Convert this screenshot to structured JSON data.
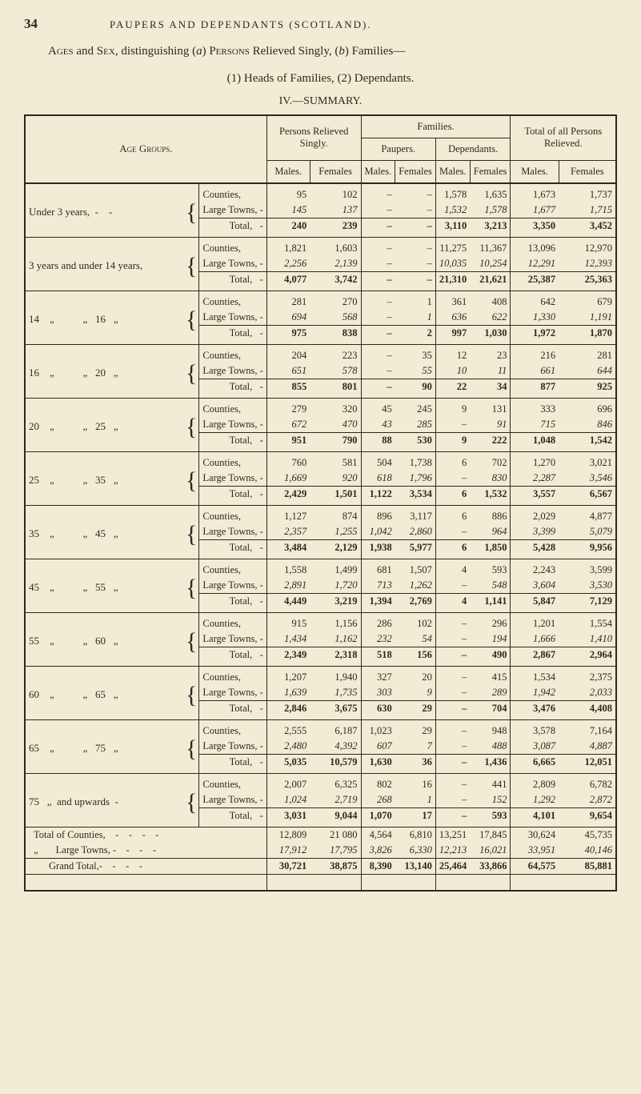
{
  "page_number": "34",
  "running_head": "PAUPERS AND DEPENDANTS (SCOTLAND).",
  "title_html": "Ages and Sex, distinguishing (a) Persons Relieved Singly, (b) Families—",
  "title_line2": "(1) Heads of Families, (2) Dependants.",
  "subtitle": "IV.—SUMMARY.",
  "header": {
    "age_groups": "Age Groups.",
    "persons_singly": "Persons Relieved Singly.",
    "families": "Families.",
    "paupers": "Paupers.",
    "dependants": "Dependants.",
    "total_all": "Total of all Persons Relieved.",
    "males": "Males.",
    "females": "Females"
  },
  "row_labels": {
    "counties": "Counties,",
    "large_towns": "Large Towns, -",
    "total": "Total,",
    "grand_total": "Grand Total,-"
  },
  "age_labels": [
    "Under 3 years,  -    -",
    "3 years and under 14 years,",
    "14    „           „   16   „",
    "16    „           „   20   „",
    "20    „           „   25   „",
    "25    „           „   35   „",
    "35    „           „   45   „",
    "45    „           „   55   „",
    "55    „           „   60   „",
    "60    „           „   65   „",
    "65    „           „   75   „",
    "75   „  and upwards  -"
  ],
  "total_counties_label": "Total of Counties,    -    -    -    -",
  "total_towns_label": "„       Large Towns, -    -    -    -",
  "groups": [
    {
      "rows": [
        {
          "t": "c",
          "v": [
            "95",
            "102",
            "–",
            "–",
            "1,578",
            "1,635",
            "1,673",
            "1,737"
          ]
        },
        {
          "t": "l",
          "v": [
            "145",
            "137",
            "–",
            "–",
            "1,532",
            "1,578",
            "1,677",
            "1,715"
          ]
        },
        {
          "t": "t",
          "v": [
            "240",
            "239",
            "–",
            "–",
            "3,110",
            "3,213",
            "3,350",
            "3,452"
          ]
        }
      ]
    },
    {
      "rows": [
        {
          "t": "c",
          "v": [
            "1,821",
            "1,603",
            "–",
            "–",
            "11,275",
            "11,367",
            "13,096",
            "12,970"
          ]
        },
        {
          "t": "l",
          "v": [
            "2,256",
            "2,139",
            "–",
            "–",
            "10,035",
            "10,254",
            "12,291",
            "12,393"
          ]
        },
        {
          "t": "t",
          "v": [
            "4,077",
            "3,742",
            "–",
            "–",
            "21,310",
            "21,621",
            "25,387",
            "25,363"
          ]
        }
      ]
    },
    {
      "rows": [
        {
          "t": "c",
          "v": [
            "281",
            "270",
            "–",
            "1",
            "361",
            "408",
            "642",
            "679"
          ]
        },
        {
          "t": "l",
          "v": [
            "694",
            "568",
            "–",
            "1",
            "636",
            "622",
            "1,330",
            "1,191"
          ]
        },
        {
          "t": "t",
          "v": [
            "975",
            "838",
            "–",
            "2",
            "997",
            "1,030",
            "1,972",
            "1,870"
          ]
        }
      ]
    },
    {
      "rows": [
        {
          "t": "c",
          "v": [
            "204",
            "223",
            "–",
            "35",
            "12",
            "23",
            "216",
            "281"
          ]
        },
        {
          "t": "l",
          "v": [
            "651",
            "578",
            "–",
            "55",
            "10",
            "11",
            "661",
            "644"
          ]
        },
        {
          "t": "t",
          "v": [
            "855",
            "801",
            "–",
            "90",
            "22",
            "34",
            "877",
            "925"
          ]
        }
      ]
    },
    {
      "rows": [
        {
          "t": "c",
          "v": [
            "279",
            "320",
            "45",
            "245",
            "9",
            "131",
            "333",
            "696"
          ]
        },
        {
          "t": "l",
          "v": [
            "672",
            "470",
            "43",
            "285",
            "–",
            "91",
            "715",
            "846"
          ]
        },
        {
          "t": "t",
          "v": [
            "951",
            "790",
            "88",
            "530",
            "9",
            "222",
            "1,048",
            "1,542"
          ]
        }
      ]
    },
    {
      "rows": [
        {
          "t": "c",
          "v": [
            "760",
            "581",
            "504",
            "1,738",
            "6",
            "702",
            "1,270",
            "3,021"
          ]
        },
        {
          "t": "l",
          "v": [
            "1,669",
            "920",
            "618",
            "1,796",
            "–",
            "830",
            "2,287",
            "3,546"
          ]
        },
        {
          "t": "t",
          "v": [
            "2,429",
            "1,501",
            "1,122",
            "3,534",
            "6",
            "1,532",
            "3,557",
            "6,567"
          ]
        }
      ]
    },
    {
      "rows": [
        {
          "t": "c",
          "v": [
            "1,127",
            "874",
            "896",
            "3,117",
            "6",
            "886",
            "2,029",
            "4,877"
          ]
        },
        {
          "t": "l",
          "v": [
            "2,357",
            "1,255",
            "1,042",
            "2,860",
            "–",
            "964",
            "3,399",
            "5,079"
          ]
        },
        {
          "t": "t",
          "v": [
            "3,484",
            "2,129",
            "1,938",
            "5,977",
            "6",
            "1,850",
            "5,428",
            "9,956"
          ]
        }
      ]
    },
    {
      "rows": [
        {
          "t": "c",
          "v": [
            "1,558",
            "1,499",
            "681",
            "1,507",
            "4",
            "593",
            "2,243",
            "3,599"
          ]
        },
        {
          "t": "l",
          "v": [
            "2,891",
            "1,720",
            "713",
            "1,262",
            "–",
            "548",
            "3,604",
            "3,530"
          ]
        },
        {
          "t": "t",
          "v": [
            "4,449",
            "3,219",
            "1,394",
            "2,769",
            "4",
            "1,141",
            "5,847",
            "7,129"
          ]
        }
      ]
    },
    {
      "rows": [
        {
          "t": "c",
          "v": [
            "915",
            "1,156",
            "286",
            "102",
            "–",
            "296",
            "1,201",
            "1,554"
          ]
        },
        {
          "t": "l",
          "v": [
            "1,434",
            "1,162",
            "232",
            "54",
            "–",
            "194",
            "1,666",
            "1,410"
          ]
        },
        {
          "t": "t",
          "v": [
            "2,349",
            "2,318",
            "518",
            "156",
            "–",
            "490",
            "2,867",
            "2,964"
          ]
        }
      ]
    },
    {
      "rows": [
        {
          "t": "c",
          "v": [
            "1,207",
            "1,940",
            "327",
            "20",
            "–",
            "415",
            "1,534",
            "2,375"
          ]
        },
        {
          "t": "l",
          "v": [
            "1,639",
            "1,735",
            "303",
            "9",
            "–",
            "289",
            "1,942",
            "2,033"
          ]
        },
        {
          "t": "t",
          "v": [
            "2,846",
            "3,675",
            "630",
            "29",
            "–",
            "704",
            "3,476",
            "4,408"
          ]
        }
      ]
    },
    {
      "rows": [
        {
          "t": "c",
          "v": [
            "2,555",
            "6,187",
            "1,023",
            "29",
            "–",
            "948",
            "3,578",
            "7,164"
          ]
        },
        {
          "t": "l",
          "v": [
            "2,480",
            "4,392",
            "607",
            "7",
            "–",
            "488",
            "3,087",
            "4,887"
          ]
        },
        {
          "t": "t",
          "v": [
            "5,035",
            "10,579",
            "1,630",
            "36",
            "–",
            "1,436",
            "6,665",
            "12,051"
          ]
        }
      ]
    },
    {
      "rows": [
        {
          "t": "c",
          "v": [
            "2,007",
            "6,325",
            "802",
            "16",
            "–",
            "441",
            "2,809",
            "6,782"
          ]
        },
        {
          "t": "l",
          "v": [
            "1,024",
            "2,719",
            "268",
            "1",
            "–",
            "152",
            "1,292",
            "2,872"
          ]
        },
        {
          "t": "t",
          "v": [
            "3,031",
            "9,044",
            "1,070",
            "17",
            "–",
            "593",
            "4,101",
            "9,654"
          ]
        }
      ]
    }
  ],
  "summary": {
    "counties": [
      "12,809",
      "21 080",
      "4,564",
      "6,810",
      "13,251",
      "17,845",
      "30,624",
      "45,735"
    ],
    "towns": [
      "17,912",
      "17,795",
      "3,826",
      "6,330",
      "12,213",
      "16,021",
      "33,951",
      "40,146"
    ],
    "grand": [
      "30,721",
      "38,875",
      "8,390",
      "13,140",
      "25,464",
      "33,866",
      "64,575",
      "85,881"
    ]
  }
}
